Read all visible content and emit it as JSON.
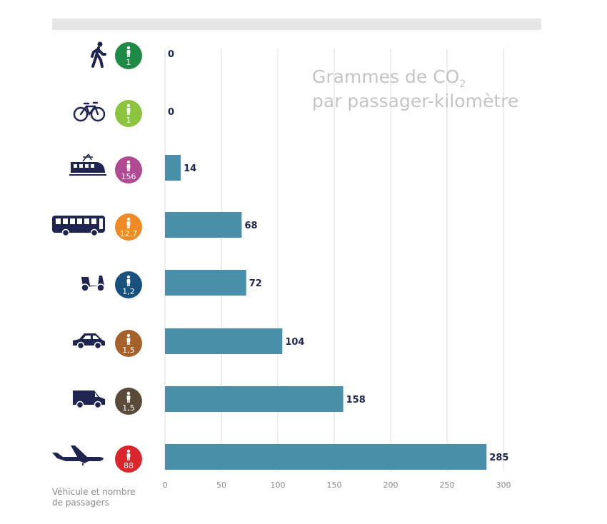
{
  "title": {
    "line1_prefix": "Grammes de CO",
    "line1_subscript": "2",
    "line2": "par passager-kilomètre"
  },
  "footnote": {
    "line1": "Véhicule et nombre",
    "line2": "de passagers"
  },
  "colors": {
    "bar": "#4a8fa9",
    "vehicle_icon": "#1f2550",
    "grid": "#dddddd",
    "top_bar": "#e6e6e6"
  },
  "chart_data": {
    "type": "bar",
    "orientation": "horizontal",
    "categories": [
      "walk",
      "bicycle",
      "train",
      "bus",
      "scooter",
      "car",
      "van",
      "airplane"
    ],
    "icons": [
      "pedestrian-icon",
      "bicycle-icon",
      "train-icon",
      "bus-icon",
      "scooter-icon",
      "car-icon",
      "van-icon",
      "airplane-icon"
    ],
    "passengers": [
      "1",
      "1",
      "156",
      "12,7",
      "1,2",
      "1,5",
      "1,5",
      "88"
    ],
    "badge_colors": [
      "#1f8a46",
      "#8cc43f",
      "#b04a93",
      "#f08a24",
      "#17527e",
      "#a4612a",
      "#5a4a3a",
      "#d9262b"
    ],
    "values": [
      0,
      0,
      14,
      68,
      72,
      104,
      158,
      285
    ],
    "xlim": [
      0,
      300
    ],
    "xticks": [
      0,
      50,
      100,
      150,
      200,
      250,
      300
    ],
    "grid": true
  }
}
